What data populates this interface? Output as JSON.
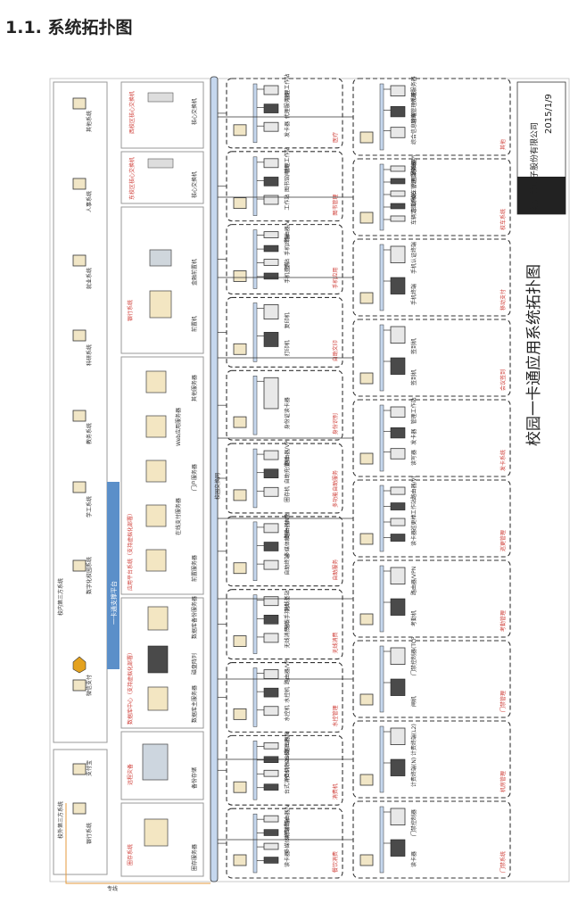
{
  "heading": "1.1. 系统拓扑图",
  "diagram": {
    "title": "校园一卡通应用系统拓扑图",
    "company": "新开普电子股份有限公司",
    "date": "2015/1/9",
    "backbone_label": "校园交换网",
    "left_bus_label": "专线",
    "third_party_group_top": {
      "title": "校外第三方系统",
      "items": [
        "银行系统",
        "支付宝",
        "微信支付"
      ]
    },
    "third_party_group_campus": {
      "title": "校内第三方系统",
      "items": [
        "数字化校园系统",
        "学工系统",
        "教务系统",
        "科研系统",
        "就业系统",
        "人事系统",
        "其他系统"
      ]
    },
    "platform_title": "一卡通支撑平台",
    "data_center": {
      "title": "数据库中心（支持虚拟化部署）",
      "items": [
        "数据库主服务器",
        "磁盘阵列",
        "数据库备份服务器"
      ]
    },
    "app_platform": {
      "title": "应用平台系统（支持虚拟化部署）",
      "items": [
        "前置服务器",
        "在线支付服务器",
        "门户服务器",
        "Web应用服务器",
        "其他服务器"
      ]
    },
    "finance": {
      "title": "圈存系统",
      "items": [
        "圈存服务器"
      ]
    },
    "remote_disaster": {
      "title": "远程灾备",
      "items": [
        "备份存储"
      ]
    },
    "bank_system": {
      "title": "银行系统",
      "items": [
        "前置机",
        "金融前置机"
      ]
    },
    "core_switches": {
      "east": "东校区核心交换机",
      "west": "西校区核心交换机",
      "items": [
        "核心交换机",
        "核心交换机",
        "核心交换机"
      ]
    },
    "access_subsystems": [
      {
        "title": "餐饮消费",
        "items": [
          "路由器/VPN",
          "消费终端",
          "多媒体终端",
          "读卡器"
        ]
      },
      {
        "title": "消费机",
        "items": [
          "路由器/VPN",
          "POS机(TCP/IP)",
          "POS机(485)",
          "台式消费机"
        ]
      },
      {
        "title": "水控管理",
        "items": [
          "路由器/VPN",
          "水控机",
          "水控机"
        ]
      },
      {
        "title": "无线消费",
        "items": [
          "无线基站",
          "无线手持机",
          "无线消费机"
        ]
      },
      {
        "title": "自助服务",
        "items": [
          "路由器/VPN",
          "多媒体触摸一体机",
          "自助终端"
        ]
      },
      {
        "title": "多功能自助服务",
        "items": [
          "路由器/VPN",
          "自助充值机",
          "圈存机"
        ]
      },
      {
        "title": "身份识别",
        "items": [
          "身份证读卡器"
        ]
      },
      {
        "title": "自助文印",
        "items": [
          "复印机",
          "打印机"
        ]
      },
      {
        "title": "手机应用",
        "items": [
          "路由器/VPN",
          "手机终端",
          "基站",
          "手机查询"
        ]
      },
      {
        "title": "图书管理",
        "items": [
          "管理工作站",
          "图书馆闸机",
          "工作站"
        ]
      },
      {
        "title": "医疗",
        "items": [
          "管理工作站",
          "代理服务器",
          "发卡器"
        ]
      }
    ],
    "lower_subsystems": [
      {
        "title": "门禁系统",
        "items": [
          "门禁控制器",
          "读卡器"
        ]
      },
      {
        "title": "机房管理",
        "items": [
          "计费终端(L2)",
          "计费终端(N)"
        ]
      },
      {
        "title": "门禁管理",
        "items": [
          "门禁控制器(TCP/IP)",
          "闸机"
        ]
      },
      {
        "title": "考勤管理",
        "items": [
          "路由器/VPN",
          "考勤机"
        ]
      },
      {
        "title": "巡更管理",
        "items": [
          "路由器/VPN",
          "工作站",
          "巡更棒",
          "读卡器"
        ]
      },
      {
        "title": "发卡系统",
        "items": [
          "管理工作站",
          "发卡器",
          "读写器"
        ]
      },
      {
        "title": "会议签到",
        "items": [
          "签到机",
          "签到机"
        ]
      },
      {
        "title": "移动支付",
        "items": [
          "手机认证终端",
          "手机终端"
        ]
      },
      {
        "title": "校车系统",
        "items": [
          "路由器/VPN",
          "代理服务器",
          "校车管理工作站",
          "车载POS",
          "车辆定位系统"
        ]
      },
      {
        "title": "其他",
        "items": [
          "代理服务器",
          "网络管理系统",
          "综合信息管理"
        ]
      }
    ]
  },
  "colors": {
    "accent_blue": "#5b8fc9",
    "bus_blue": "#c5d7ee",
    "red_label": "#d0413b",
    "box_border": "#333333"
  }
}
